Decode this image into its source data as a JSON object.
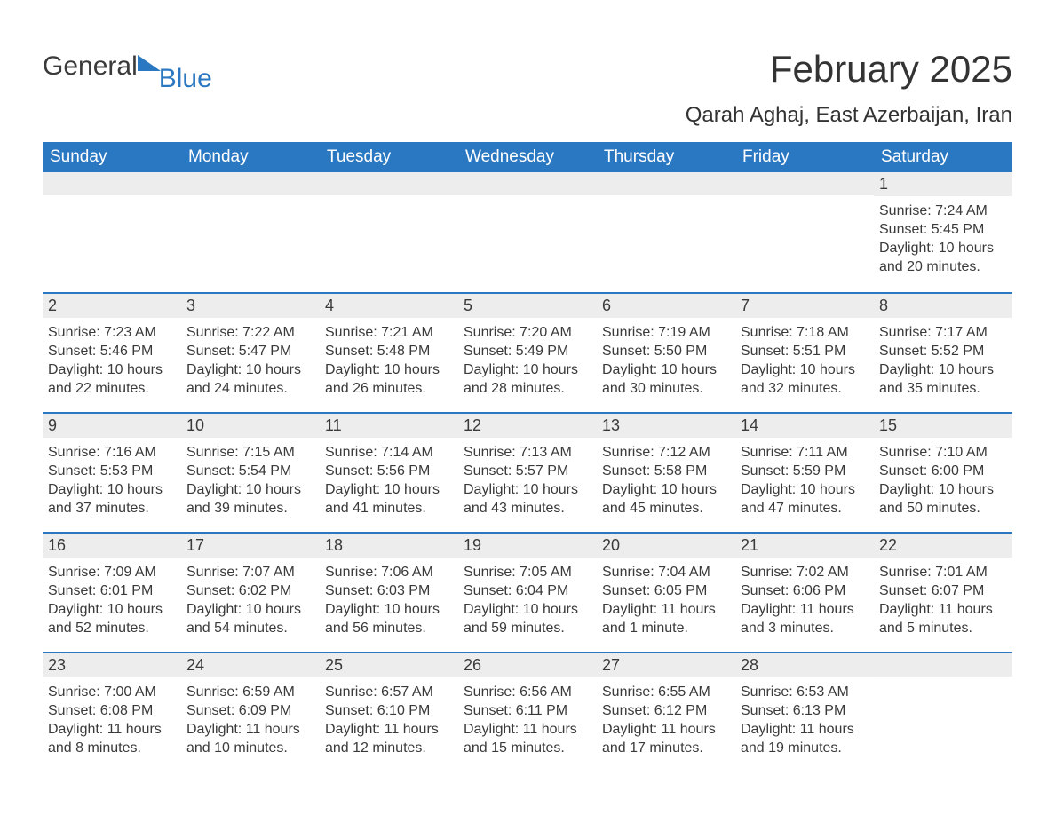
{
  "logo": {
    "word1": "General",
    "word2": "Blue"
  },
  "title": "February 2025",
  "location": "Qarah Aghaj, East Azerbaijan, Iran",
  "colors": {
    "header_bg": "#2b78c2",
    "header_text": "#ffffff",
    "daynum_bg": "#ededed",
    "row_border": "#2b78c2",
    "body_text": "#3a3a3a",
    "page_bg": "#ffffff"
  },
  "typography": {
    "month_title_fontsize": 42,
    "location_fontsize": 24,
    "weekday_fontsize": 19,
    "daynum_fontsize": 18,
    "body_fontsize": 16
  },
  "weekdays": [
    "Sunday",
    "Monday",
    "Tuesday",
    "Wednesday",
    "Thursday",
    "Friday",
    "Saturday"
  ],
  "weeks": [
    [
      null,
      null,
      null,
      null,
      null,
      null,
      {
        "n": "1",
        "sunrise": "Sunrise: 7:24 AM",
        "sunset": "Sunset: 5:45 PM",
        "daylight": "Daylight: 10 hours and 20 minutes."
      }
    ],
    [
      {
        "n": "2",
        "sunrise": "Sunrise: 7:23 AM",
        "sunset": "Sunset: 5:46 PM",
        "daylight": "Daylight: 10 hours and 22 minutes."
      },
      {
        "n": "3",
        "sunrise": "Sunrise: 7:22 AM",
        "sunset": "Sunset: 5:47 PM",
        "daylight": "Daylight: 10 hours and 24 minutes."
      },
      {
        "n": "4",
        "sunrise": "Sunrise: 7:21 AM",
        "sunset": "Sunset: 5:48 PM",
        "daylight": "Daylight: 10 hours and 26 minutes."
      },
      {
        "n": "5",
        "sunrise": "Sunrise: 7:20 AM",
        "sunset": "Sunset: 5:49 PM",
        "daylight": "Daylight: 10 hours and 28 minutes."
      },
      {
        "n": "6",
        "sunrise": "Sunrise: 7:19 AM",
        "sunset": "Sunset: 5:50 PM",
        "daylight": "Daylight: 10 hours and 30 minutes."
      },
      {
        "n": "7",
        "sunrise": "Sunrise: 7:18 AM",
        "sunset": "Sunset: 5:51 PM",
        "daylight": "Daylight: 10 hours and 32 minutes."
      },
      {
        "n": "8",
        "sunrise": "Sunrise: 7:17 AM",
        "sunset": "Sunset: 5:52 PM",
        "daylight": "Daylight: 10 hours and 35 minutes."
      }
    ],
    [
      {
        "n": "9",
        "sunrise": "Sunrise: 7:16 AM",
        "sunset": "Sunset: 5:53 PM",
        "daylight": "Daylight: 10 hours and 37 minutes."
      },
      {
        "n": "10",
        "sunrise": "Sunrise: 7:15 AM",
        "sunset": "Sunset: 5:54 PM",
        "daylight": "Daylight: 10 hours and 39 minutes."
      },
      {
        "n": "11",
        "sunrise": "Sunrise: 7:14 AM",
        "sunset": "Sunset: 5:56 PM",
        "daylight": "Daylight: 10 hours and 41 minutes."
      },
      {
        "n": "12",
        "sunrise": "Sunrise: 7:13 AM",
        "sunset": "Sunset: 5:57 PM",
        "daylight": "Daylight: 10 hours and 43 minutes."
      },
      {
        "n": "13",
        "sunrise": "Sunrise: 7:12 AM",
        "sunset": "Sunset: 5:58 PM",
        "daylight": "Daylight: 10 hours and 45 minutes."
      },
      {
        "n": "14",
        "sunrise": "Sunrise: 7:11 AM",
        "sunset": "Sunset: 5:59 PM",
        "daylight": "Daylight: 10 hours and 47 minutes."
      },
      {
        "n": "15",
        "sunrise": "Sunrise: 7:10 AM",
        "sunset": "Sunset: 6:00 PM",
        "daylight": "Daylight: 10 hours and 50 minutes."
      }
    ],
    [
      {
        "n": "16",
        "sunrise": "Sunrise: 7:09 AM",
        "sunset": "Sunset: 6:01 PM",
        "daylight": "Daylight: 10 hours and 52 minutes."
      },
      {
        "n": "17",
        "sunrise": "Sunrise: 7:07 AM",
        "sunset": "Sunset: 6:02 PM",
        "daylight": "Daylight: 10 hours and 54 minutes."
      },
      {
        "n": "18",
        "sunrise": "Sunrise: 7:06 AM",
        "sunset": "Sunset: 6:03 PM",
        "daylight": "Daylight: 10 hours and 56 minutes."
      },
      {
        "n": "19",
        "sunrise": "Sunrise: 7:05 AM",
        "sunset": "Sunset: 6:04 PM",
        "daylight": "Daylight: 10 hours and 59 minutes."
      },
      {
        "n": "20",
        "sunrise": "Sunrise: 7:04 AM",
        "sunset": "Sunset: 6:05 PM",
        "daylight": "Daylight: 11 hours and 1 minute."
      },
      {
        "n": "21",
        "sunrise": "Sunrise: 7:02 AM",
        "sunset": "Sunset: 6:06 PM",
        "daylight": "Daylight: 11 hours and 3 minutes."
      },
      {
        "n": "22",
        "sunrise": "Sunrise: 7:01 AM",
        "sunset": "Sunset: 6:07 PM",
        "daylight": "Daylight: 11 hours and 5 minutes."
      }
    ],
    [
      {
        "n": "23",
        "sunrise": "Sunrise: 7:00 AM",
        "sunset": "Sunset: 6:08 PM",
        "daylight": "Daylight: 11 hours and 8 minutes."
      },
      {
        "n": "24",
        "sunrise": "Sunrise: 6:59 AM",
        "sunset": "Sunset: 6:09 PM",
        "daylight": "Daylight: 11 hours and 10 minutes."
      },
      {
        "n": "25",
        "sunrise": "Sunrise: 6:57 AM",
        "sunset": "Sunset: 6:10 PM",
        "daylight": "Daylight: 11 hours and 12 minutes."
      },
      {
        "n": "26",
        "sunrise": "Sunrise: 6:56 AM",
        "sunset": "Sunset: 6:11 PM",
        "daylight": "Daylight: 11 hours and 15 minutes."
      },
      {
        "n": "27",
        "sunrise": "Sunrise: 6:55 AM",
        "sunset": "Sunset: 6:12 PM",
        "daylight": "Daylight: 11 hours and 17 minutes."
      },
      {
        "n": "28",
        "sunrise": "Sunrise: 6:53 AM",
        "sunset": "Sunset: 6:13 PM",
        "daylight": "Daylight: 11 hours and 19 minutes."
      },
      null
    ]
  ]
}
